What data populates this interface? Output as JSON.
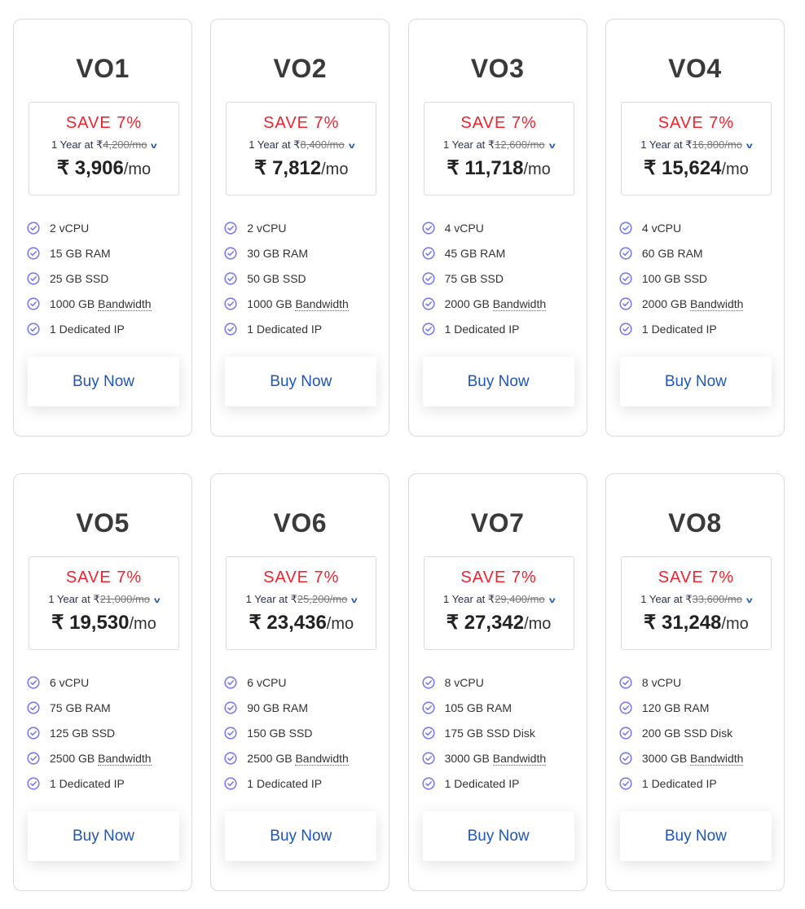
{
  "currency": "₹",
  "per_month": "/mo",
  "term_label": "1 Year at",
  "save_label": "SAVE 7%",
  "buy_label": "Buy Now",
  "colors": {
    "save": "#f5222d",
    "accent": "#1f56b8",
    "check": "#7b7bf0"
  },
  "plans": [
    {
      "name": "VO1",
      "original": "4,200/mo",
      "price": "3,906",
      "features": [
        "2 vCPU",
        "15 GB RAM",
        "25 GB SSD",
        "1000 GB",
        "1 Dedicated IP"
      ]
    },
    {
      "name": "VO2",
      "original": "8,400/mo",
      "price": "7,812",
      "features": [
        "2 vCPU",
        "30 GB RAM",
        "50 GB SSD",
        "1000 GB",
        "1 Dedicated IP"
      ]
    },
    {
      "name": "VO3",
      "original": "12,600/mo",
      "price": "11,718",
      "features": [
        "4 vCPU",
        "45 GB RAM",
        "75 GB SSD",
        "2000 GB",
        "1 Dedicated IP"
      ]
    },
    {
      "name": "VO4",
      "original": "16,800/mo",
      "price": "15,624",
      "features": [
        "4 vCPU",
        "60 GB RAM",
        "100 GB SSD",
        "2000 GB",
        "1 Dedicated IP"
      ]
    },
    {
      "name": "VO5",
      "original": "21,000/mo",
      "price": "19,530",
      "features": [
        "6 vCPU",
        "75 GB RAM",
        "125 GB SSD",
        "2500 GB",
        "1 Dedicated IP"
      ]
    },
    {
      "name": "VO6",
      "original": "25,200/mo",
      "price": "23,436",
      "features": [
        "6 vCPU",
        "90 GB RAM",
        "150 GB SSD",
        "2500 GB",
        "1 Dedicated IP"
      ]
    },
    {
      "name": "VO7",
      "original": "29,400/mo",
      "price": "27,342",
      "features": [
        "8 vCPU",
        "105 GB RAM",
        "175 GB SSD Disk",
        "3000 GB",
        "1 Dedicated IP"
      ]
    },
    {
      "name": "VO8",
      "original": "33,600/mo",
      "price": "31,248",
      "features": [
        "8 vCPU",
        "120 GB RAM",
        "200 GB SSD Disk",
        "3000 GB",
        "1 Dedicated IP"
      ]
    }
  ],
  "bandwidth_label": "Bandwidth"
}
